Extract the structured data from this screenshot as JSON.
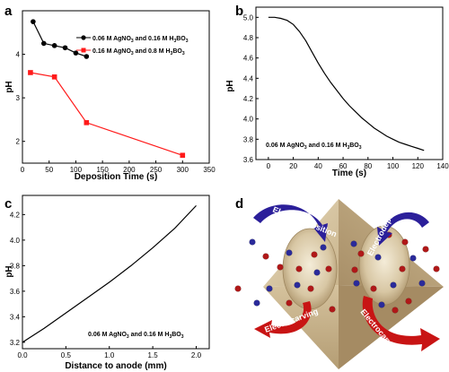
{
  "panels": {
    "a": "a",
    "b": "b",
    "c": "c",
    "d": "d"
  },
  "chart_data": [
    {
      "type": "line",
      "panel": "a",
      "xlabel": "Deposition Time (s)",
      "ylabel": "pH",
      "xlim": [
        0,
        350
      ],
      "ylim": [
        1.5,
        5
      ],
      "xticks": [
        0,
        50,
        100,
        150,
        200,
        250,
        300,
        350
      ],
      "yticks": [
        2,
        3,
        4
      ],
      "legend_position": "right",
      "series": [
        {
          "name": "0.06 M AgNO",
          "name_sub1": "3",
          "name_mid": " and 0.16 M H",
          "name_sub2": "3",
          "name_mid2": "BO",
          "name_sub3": "3",
          "color": "#000000",
          "marker": "circle",
          "x": [
            20,
            40,
            60,
            80,
            100,
            120
          ],
          "y": [
            4.75,
            4.25,
            4.2,
            4.15,
            4.03,
            3.95
          ]
        },
        {
          "name": "0.16 M AgNO",
          "name_sub1": "3",
          "name_mid": " and 0.8 M H",
          "name_sub2": "3",
          "name_mid2": "BO",
          "name_sub3": "3",
          "color": "#ff1a1a",
          "marker": "square",
          "x": [
            15,
            60,
            120,
            300
          ],
          "y": [
            3.58,
            3.48,
            2.43,
            1.68
          ]
        }
      ]
    },
    {
      "type": "line",
      "panel": "b",
      "xlabel": "Time (s)",
      "ylabel": "pH",
      "xlim": [
        -10,
        140
      ],
      "ylim": [
        3.6,
        5.1
      ],
      "xticks": [
        0,
        20,
        40,
        60,
        80,
        100,
        120,
        140
      ],
      "yticks": [
        3.6,
        3.8,
        4.0,
        4.2,
        4.4,
        4.6,
        4.8,
        5.0
      ],
      "annotation": "0.06 M AgNO3 and 0.16 M H3BO3",
      "series": [
        {
          "color": "#000000",
          "x": [
            0,
            5,
            10,
            15,
            20,
            25,
            30,
            35,
            40,
            45,
            50,
            55,
            60,
            65,
            70,
            75,
            80,
            85,
            90,
            95,
            100,
            105,
            110,
            115,
            120,
            125
          ],
          "y": [
            5.0,
            5.0,
            4.99,
            4.97,
            4.93,
            4.86,
            4.77,
            4.66,
            4.55,
            4.45,
            4.36,
            4.28,
            4.2,
            4.13,
            4.07,
            4.01,
            3.96,
            3.91,
            3.87,
            3.83,
            3.8,
            3.77,
            3.75,
            3.73,
            3.71,
            3.69
          ]
        }
      ]
    },
    {
      "type": "line",
      "panel": "c",
      "xlabel": "Distance to anode (mm)",
      "ylabel": "pH",
      "xlim": [
        0,
        2.15
      ],
      "ylim": [
        3.15,
        4.35
      ],
      "xticks": [
        0.0,
        0.5,
        1.0,
        1.5,
        2.0
      ],
      "xtick_labels": [
        "0.0",
        "0.5",
        "1.0",
        "1.5",
        "2.0"
      ],
      "yticks": [
        3.2,
        3.4,
        3.6,
        3.8,
        4.0,
        4.2
      ],
      "yticks_labels": [
        "3.2",
        "3.4",
        "3.6",
        "3.8",
        "4.0",
        "4.2"
      ],
      "annotation": "0.06 M AgNO3 and 0.16 M H3BO3",
      "series": [
        {
          "color": "#000000",
          "x": [
            0,
            0.25,
            0.5,
            0.75,
            1.0,
            1.25,
            1.5,
            1.75,
            2.0
          ],
          "y": [
            3.2,
            3.31,
            3.43,
            3.55,
            3.67,
            3.8,
            3.94,
            4.09,
            4.27
          ]
        }
      ]
    }
  ],
  "diagram_d": {
    "label_electrodeposition": "Electrodeposition",
    "label_electrocarving": "Electrocarving",
    "colors": {
      "pyramid_light": "#d8c8a8",
      "pyramid_dark": "#a8906a",
      "blue_arrow": "#2b1f9a",
      "red_arrow": "#c81414",
      "blue_dot": "#2a2a9a",
      "red_dot": "#b01818"
    }
  },
  "annotations": {
    "sub_prefix": "0.06 M AgNO",
    "sub_3a": "3",
    "sub_mid": " and 0.16 M H",
    "sub_3b": "3",
    "sub_bo": "BO",
    "sub_3c": "3"
  }
}
